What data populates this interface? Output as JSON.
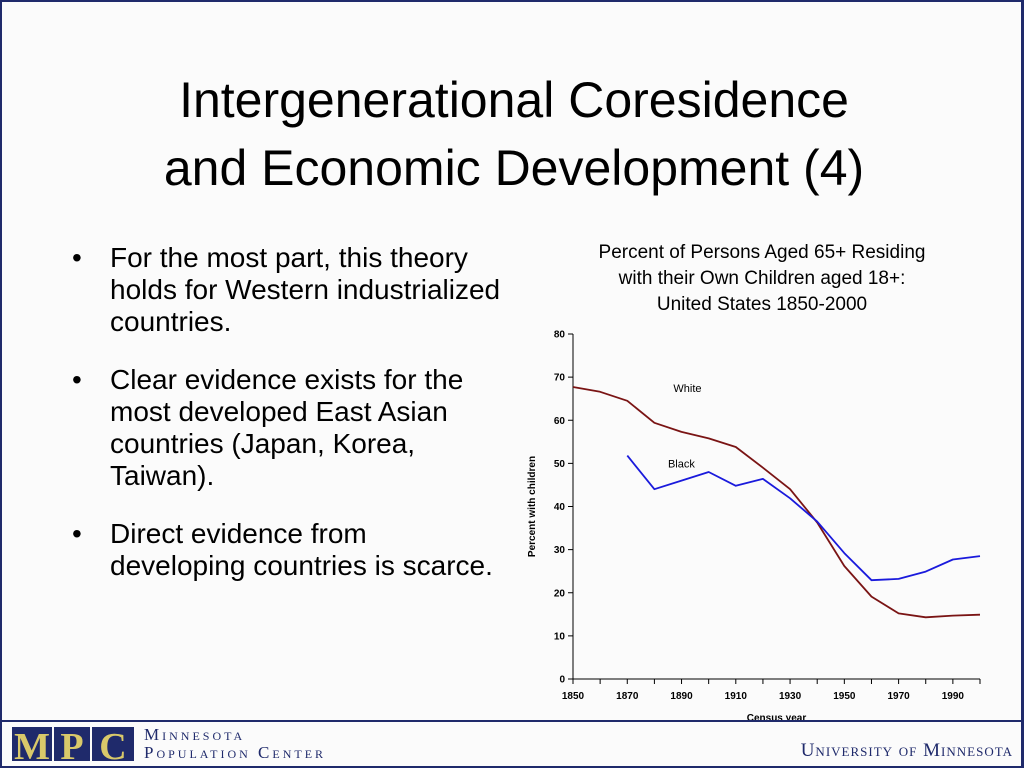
{
  "slide": {
    "title_line1": "Intergenerational Coresidence",
    "title_line2": "and Economic Development (4)",
    "bullets": [
      "For the most part, this theory holds for Western industrialized countries.",
      "Clear evidence exists for the most developed East Asian countries (Japan, Korea, Taiwan).",
      "Direct evidence from developing countries is scarce."
    ],
    "bullet_symbol": "•"
  },
  "footer": {
    "logo_letters": [
      "M",
      "P",
      "C"
    ],
    "org_line1": "Minnesota",
    "org_line2": "Population Center",
    "university": "University of Minnesota",
    "brand_color": "#1f2a6b",
    "logo_letter_color": "#d9c96a"
  },
  "chart_data": {
    "type": "line",
    "title_lines": [
      "Percent of Persons Aged 65+ Residing",
      "with their Own Children aged 18+:",
      "United States 1850-2000"
    ],
    "xlabel": "Census year",
    "ylabel": "Percent with children",
    "xlim": [
      1850,
      2000
    ],
    "ylim": [
      0,
      80
    ],
    "x_ticks": [
      1850,
      1870,
      1890,
      1910,
      1930,
      1950,
      1970,
      1990
    ],
    "y_ticks": [
      0,
      10,
      20,
      30,
      40,
      50,
      60,
      70,
      80
    ],
    "grid": false,
    "series": [
      {
        "name": "White",
        "color": "#7a1414",
        "x": [
          1850,
          1860,
          1870,
          1880,
          1890,
          1900,
          1910,
          1920,
          1930,
          1940,
          1950,
          1960,
          1970,
          1980,
          1990,
          2000
        ],
        "values": [
          67.7,
          66.6,
          64.5,
          59.4,
          57.3,
          55.8,
          53.8,
          49.0,
          44.0,
          36.3,
          26.2,
          19.1,
          15.2,
          14.3,
          14.7,
          14.9
        ]
      },
      {
        "name": "Black",
        "color": "#1a1adc",
        "x": [
          1870,
          1880,
          1890,
          1900,
          1910,
          1920,
          1930,
          1940,
          1950,
          1960,
          1970,
          1980,
          1990,
          2000
        ],
        "values": [
          51.8,
          44.0,
          46.0,
          48.0,
          44.8,
          46.4,
          41.9,
          36.5,
          29.2,
          22.9,
          23.2,
          24.9,
          27.7,
          28.5
        ]
      }
    ],
    "series_labels": [
      {
        "name": "White",
        "x": 1887,
        "y": 66.5
      },
      {
        "name": "Black",
        "x": 1885,
        "y": 49.0
      }
    ]
  }
}
